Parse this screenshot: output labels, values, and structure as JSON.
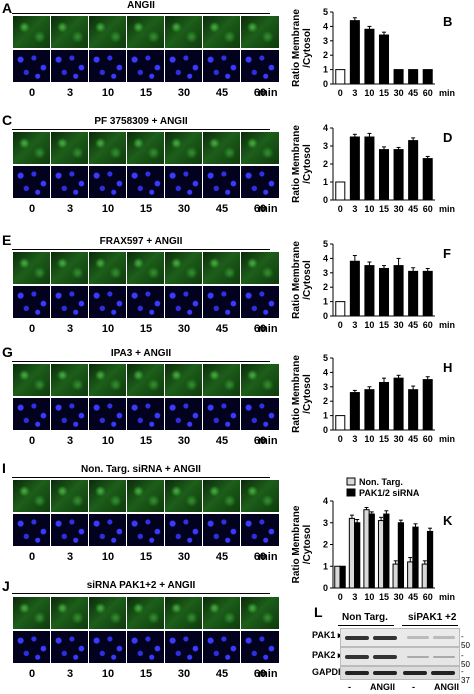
{
  "min_label": "min",
  "panels": [
    {
      "id": "A",
      "title": "ANGII",
      "times": [
        "0",
        "3",
        "10",
        "15",
        "30",
        "45",
        "60"
      ]
    },
    {
      "id": "C",
      "title": "PF 3758309 + ANGII",
      "times": [
        "0",
        "3",
        "10",
        "15",
        "30",
        "45",
        "60"
      ]
    },
    {
      "id": "E",
      "title": "FRAX597 + ANGII",
      "times": [
        "0",
        "3",
        "10",
        "15",
        "30",
        "45",
        "60"
      ]
    },
    {
      "id": "G",
      "title": "IPA3 + ANGII",
      "times": [
        "0",
        "3",
        "10",
        "15",
        "30",
        "45",
        "60"
      ]
    },
    {
      "id": "I",
      "title": "Non. Targ. siRNA + ANGII",
      "times": [
        "0",
        "3",
        "10",
        "15",
        "30",
        "45",
        "60"
      ]
    },
    {
      "id": "J",
      "title": "siRNA PAK1+2 + ANGII",
      "times": [
        "0",
        "3",
        "10",
        "15",
        "30",
        "45",
        "60"
      ]
    }
  ],
  "chart_data": [
    {
      "panel": "B",
      "type": "bar",
      "ylabel": "Ratio Membrane /Cytosol",
      "ylim": [
        0,
        5
      ],
      "yticks": [
        "0",
        "1",
        "2",
        "3",
        "4",
        "5"
      ],
      "categories": [
        "0",
        "3",
        "10",
        "15",
        "30",
        "45",
        "60"
      ],
      "xunit": "min",
      "values": [
        1.0,
        4.4,
        3.8,
        3.4,
        1.0,
        1.0,
        1.0
      ],
      "errors": [
        0,
        0.2,
        0.2,
        0.2,
        0,
        0,
        0
      ]
    },
    {
      "panel": "D",
      "type": "bar",
      "ylabel": "Ratio Membrane /Cytosol",
      "ylim": [
        0,
        4
      ],
      "yticks": [
        "0",
        "1",
        "2",
        "3",
        "4"
      ],
      "categories": [
        "0",
        "3",
        "10",
        "15",
        "30",
        "45",
        "60"
      ],
      "xunit": "min",
      "values": [
        1.0,
        3.5,
        3.5,
        2.8,
        2.8,
        3.3,
        2.3
      ],
      "errors": [
        0,
        0.15,
        0.2,
        0.15,
        0.12,
        0.15,
        0.12
      ]
    },
    {
      "panel": "F",
      "type": "bar",
      "ylabel": "Ratio Membrane /Cytosol",
      "ylim": [
        0,
        5
      ],
      "yticks": [
        "0",
        "1",
        "2",
        "3",
        "4",
        "5"
      ],
      "categories": [
        "0",
        "3",
        "10",
        "15",
        "30",
        "45",
        "60"
      ],
      "xunit": "min",
      "values": [
        1.0,
        3.8,
        3.5,
        3.3,
        3.5,
        3.1,
        3.1
      ],
      "errors": [
        0,
        0.4,
        0.25,
        0.2,
        0.5,
        0.25,
        0.2
      ]
    },
    {
      "panel": "H",
      "type": "bar",
      "ylabel": "Ratio Membrane /Cytosol",
      "ylim": [
        0,
        5
      ],
      "yticks": [
        "0",
        "1",
        "2",
        "3",
        "4",
        "5"
      ],
      "categories": [
        "0",
        "3",
        "10",
        "15",
        "30",
        "45",
        "60"
      ],
      "xunit": "min",
      "values": [
        1.0,
        2.6,
        2.8,
        3.3,
        3.6,
        2.8,
        3.5
      ],
      "errors": [
        0,
        0.15,
        0.2,
        0.3,
        0.2,
        0.25,
        0.2
      ]
    },
    {
      "panel": "K",
      "type": "bar",
      "ylabel": "Ratio Membrane /Cytosol",
      "ylim": [
        0,
        4
      ],
      "yticks": [
        "0",
        "1",
        "2",
        "3",
        "4"
      ],
      "categories": [
        "0",
        "3",
        "10",
        "15",
        "30",
        "45",
        "60"
      ],
      "xunit": "min",
      "series": [
        {
          "name": "Non. Targ.",
          "values": [
            1.0,
            3.2,
            3.6,
            3.1,
            1.1,
            1.2,
            1.1
          ],
          "errors": [
            0,
            0.15,
            0.1,
            0.15,
            0.15,
            0.2,
            0.15
          ]
        },
        {
          "name": "PAK1/2 siRNA",
          "values": [
            1.0,
            3.0,
            3.4,
            3.4,
            3.0,
            2.8,
            2.6
          ],
          "errors": [
            0,
            0.15,
            0.1,
            0.15,
            0.12,
            0.15,
            0.15
          ]
        }
      ]
    }
  ],
  "western_blot": {
    "panel": "L",
    "groups": [
      "Non Targ.",
      "siPAK1 +2"
    ],
    "rows": [
      {
        "label": "PAK1",
        "mw": "50"
      },
      {
        "label": "PAK2",
        "mw": "50"
      },
      {
        "label": "GAPDH",
        "mw": "37"
      }
    ],
    "lane_labels": [
      "-",
      "ANGII",
      "-",
      "ANGII"
    ]
  }
}
